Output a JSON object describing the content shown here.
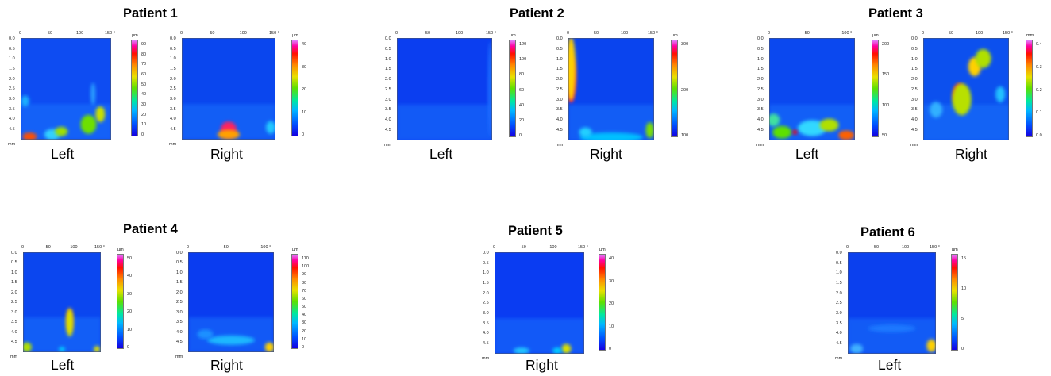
{
  "patients": [
    {
      "title": "Patient 1",
      "maps": [
        {
          "side_label": "Left",
          "x_ticks": [
            "0",
            "50",
            "100",
            "150"
          ],
          "x_end": "°",
          "y_ticks": [
            "0.0",
            "0.5",
            "1.0",
            "1.5",
            "2.0",
            "2.5",
            "3.0",
            "3.5",
            "4.0",
            "4.5"
          ],
          "y_unit": "mm",
          "cbar_unit": "µm",
          "cbar_ticks": [
            "90",
            "80",
            "70",
            "60",
            "50",
            "40",
            "30",
            "20",
            "10",
            "0"
          ]
        },
        {
          "side_label": "Right",
          "x_ticks": [
            "0",
            "50",
            "100",
            "150"
          ],
          "x_end": "°",
          "y_ticks": [
            "0.0",
            "0.5",
            "1.0",
            "1.5",
            "2.0",
            "2.5",
            "3.0",
            "3.5",
            "4.0",
            "4.5"
          ],
          "y_unit": "mm",
          "cbar_unit": "µm",
          "cbar_ticks": [
            "40",
            "30",
            "20",
            "10",
            "0"
          ]
        }
      ]
    },
    {
      "title": "Patient 2",
      "maps": [
        {
          "side_label": "Left",
          "x_ticks": [
            "0",
            "50",
            "100",
            "150"
          ],
          "x_end": "°",
          "y_ticks": [
            "0.0",
            "0.5",
            "1.0",
            "1.5",
            "2.0",
            "2.5",
            "3.0",
            "3.5",
            "4.0",
            "4.5"
          ],
          "y_unit": "mm",
          "cbar_unit": "µm",
          "cbar_ticks": [
            "120",
            "100",
            "80",
            "60",
            "40",
            "20",
            "0"
          ]
        },
        {
          "side_label": "Right",
          "x_ticks": [
            "0",
            "50",
            "100",
            "150"
          ],
          "x_end": "°",
          "y_ticks": [
            "0.0",
            "0.5",
            "1.0",
            "1.5",
            "2.0",
            "2.5",
            "3.0",
            "3.5",
            "4.0",
            "4.5"
          ],
          "y_unit": "mm",
          "cbar_unit": "µm",
          "cbar_ticks": [
            "300",
            "200",
            "100"
          ]
        }
      ]
    },
    {
      "title": "Patient 3",
      "maps": [
        {
          "side_label": "Left",
          "x_ticks": [
            "0",
            "50",
            "100"
          ],
          "x_end": "°",
          "y_ticks": [
            "0.0",
            "0.5",
            "1.0",
            "1.5",
            "2.0",
            "2.5",
            "3.0",
            "3.5",
            "4.0",
            "4.5"
          ],
          "y_unit": "mm",
          "cbar_unit": "µm",
          "cbar_ticks": [
            "200",
            "150",
            "100",
            "50"
          ]
        },
        {
          "side_label": "Right",
          "x_ticks": [
            "0",
            "50",
            "100",
            "150"
          ],
          "x_end": "°",
          "y_ticks": [
            "0.0",
            "0.5",
            "1.0",
            "1.5",
            "2.0",
            "2.5",
            "3.0",
            "3.5",
            "4.0",
            "4.5"
          ],
          "y_unit": "mm",
          "cbar_unit": "mm",
          "cbar_ticks": [
            "0.4",
            "0.3",
            "0.2",
            "0.1",
            "0.0"
          ]
        }
      ]
    },
    {
      "title": "Patient 4",
      "maps": [
        {
          "side_label": "Left",
          "x_ticks": [
            "0",
            "50",
            "100",
            "150"
          ],
          "x_end": "°",
          "y_ticks": [
            "0.0",
            "0.5",
            "1.0",
            "1.5",
            "2.0",
            "2.5",
            "3.0",
            "3.5",
            "4.0",
            "4.5"
          ],
          "y_unit": "mm",
          "cbar_unit": "µm",
          "cbar_ticks": [
            "50",
            "40",
            "30",
            "20",
            "10",
            "0"
          ]
        },
        {
          "side_label": "Right",
          "x_ticks": [
            "0",
            "50",
            "100"
          ],
          "x_end": "°",
          "y_ticks": [
            "0.0",
            "0.5",
            "1.0",
            "1.5",
            "2.0",
            "2.5",
            "3.0",
            "3.5",
            "4.0",
            "4.5"
          ],
          "y_unit": "mm",
          "cbar_unit": "µm",
          "cbar_ticks": [
            "110",
            "100",
            "90",
            "80",
            "70",
            "60",
            "50",
            "40",
            "30",
            "20",
            "10",
            "0"
          ]
        }
      ]
    },
    {
      "title": "Patient 5",
      "maps": [
        {
          "side_label": "Right",
          "x_ticks": [
            "0",
            "50",
            "100",
            "150"
          ],
          "x_end": "°",
          "y_ticks": [
            "0.0",
            "0.5",
            "1.0",
            "1.5",
            "2.0",
            "2.5",
            "3.0",
            "3.5",
            "4.0",
            "4.5"
          ],
          "y_unit": "mm",
          "cbar_unit": "µm",
          "cbar_ticks": [
            "40",
            "30",
            "20",
            "10",
            "0"
          ]
        }
      ]
    },
    {
      "title": "Patient 6",
      "maps": [
        {
          "side_label": "Left",
          "x_ticks": [
            "0",
            "50",
            "100",
            "150"
          ],
          "x_end": "°",
          "y_ticks": [
            "0.0",
            "0.5",
            "1.0",
            "1.5",
            "2.0",
            "2.5",
            "3.0",
            "3.5",
            "4.0",
            "4.5"
          ],
          "y_unit": "mm",
          "cbar_unit": "µm",
          "cbar_ticks": [
            "15",
            "10",
            "5",
            "0"
          ]
        }
      ]
    }
  ]
}
